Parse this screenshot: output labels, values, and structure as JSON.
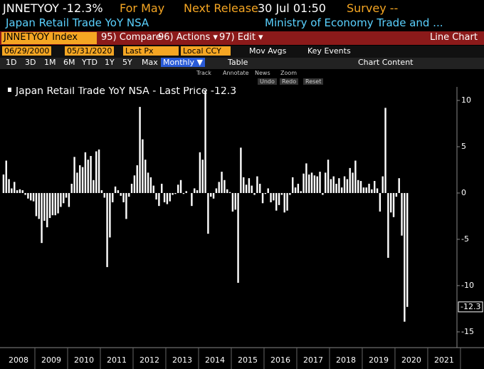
{
  "header": {
    "ticker": "JNNETYOY",
    "change": "-12.3%",
    "for_label": "For May",
    "next_label": "Next Release",
    "next_date": "30 Jul 01:50",
    "survey": "Survey --",
    "name": "Japan Retail Trade YoY NSA",
    "source": "Ministry of Economy Trade and ..."
  },
  "toolbar": {
    "security": "JNNETYOY Index",
    "compare": "95) Compare",
    "actions": "96) Actions ▾",
    "edit": "97) Edit ▾",
    "view": "Line Chart",
    "start": "06/29/2000",
    "end": "05/31/2020",
    "field": "Last Px",
    "currency": "Local CCY",
    "mov_avgs": "Mov Avgs",
    "key_events": "Key Events",
    "ranges": [
      "1D",
      "3D",
      "1M",
      "6M",
      "YTD",
      "1Y",
      "5Y",
      "Max"
    ],
    "period": "Monthly ▼",
    "table": "Table",
    "chart_content": "Chart Content",
    "tools": [
      "Track",
      "Annotate",
      "News",
      "Zoom"
    ],
    "edit_tools": [
      "Undo",
      "Redo",
      "Reset"
    ]
  },
  "chart_data": {
    "type": "bar",
    "title": "Japan Retail Trade YoY NSA - Last Price -12.3",
    "color": "#ffffff",
    "years": [
      "2008",
      "2009",
      "2010",
      "2011",
      "2012",
      "2013",
      "2014",
      "2015",
      "2016",
      "2017",
      "2018",
      "2019",
      "2020",
      "2021"
    ],
    "values": [
      2.0,
      3.5,
      1.5,
      0.5,
      1.2,
      0.3,
      0.4,
      0.3,
      -0.2,
      -0.6,
      -0.8,
      -0.9,
      -2.5,
      -2.8,
      -5.4,
      -3.0,
      -3.7,
      -2.7,
      -2.4,
      -2.4,
      -2.2,
      -1.5,
      -1.1,
      -0.5,
      -1.5,
      1.0,
      3.9,
      2.2,
      3.0,
      2.8,
      4.4,
      3.6,
      4.0,
      1.4,
      4.5,
      4.7,
      0.3,
      -0.5,
      -8.0,
      -4.8,
      -1.0,
      0.7,
      0.3,
      -0.3,
      -1.0,
      -2.8,
      -0.4,
      1.0,
      1.9,
      3.0,
      9.3,
      5.8,
      3.6,
      2.2,
      1.7,
      0.8,
      -0.7,
      -1.4,
      1.0,
      -1.0,
      -1.2,
      -0.9,
      -0.2,
      -0.1,
      0.9,
      1.4,
      -0.1,
      0.2,
      0.0,
      -1.4,
      0.5,
      0.3,
      4.4,
      3.6,
      11.0,
      -4.4,
      -0.4,
      -0.6,
      0.5,
      1.2,
      2.3,
      1.4,
      0.4,
      0.1,
      -2.0,
      -1.8,
      -9.7,
      4.9,
      1.7,
      0.9,
      1.6,
      0.8,
      -0.2,
      1.8,
      1.0,
      -1.1,
      -0.1,
      0.5,
      -1.0,
      -0.8,
      -1.9,
      -1.3,
      -0.2,
      -2.1,
      -1.9,
      -0.2,
      1.7,
      0.6,
      1.0,
      0.2,
      2.1,
      3.2,
      2.0,
      2.2,
      1.9,
      1.8,
      2.3,
      -0.2,
      2.2,
      3.6,
      1.5,
      1.8,
      1.0,
      1.6,
      0.6,
      1.8,
      1.5,
      2.7,
      2.2,
      3.5,
      1.4,
      1.3,
      0.6,
      0.6,
      1.0,
      0.4,
      1.3,
      0.5,
      -2.0,
      1.8,
      9.2,
      -7.0,
      -2.1,
      -2.6,
      -0.4,
      1.6,
      -4.6,
      -13.9,
      -12.3
    ],
    "last_value_label": "-12.3",
    "ylim": [
      -16.7,
      11
    ],
    "yticks": [
      -15,
      -10,
      -5,
      0,
      5,
      10
    ]
  }
}
